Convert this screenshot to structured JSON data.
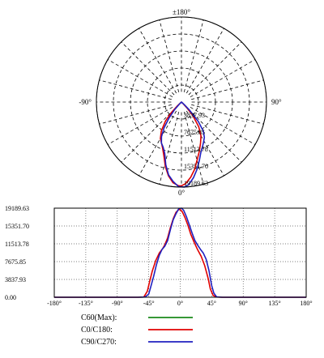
{
  "colors": {
    "c60": "#1a8a1a",
    "c0_c180": "#e00000",
    "c90_c270": "#2020c0",
    "grid": "#000000"
  },
  "polar": {
    "angle_labels": {
      "top": "±180°",
      "left": "-90°",
      "right": "90°",
      "bottom": "0°"
    },
    "ring_labels": [
      "3837.93",
      "7675.85",
      "11513.78",
      "15351.70",
      "19189.63"
    ],
    "ring_label_display": [
      "3837.93",
      "7675.85",
      "11513.78",
      "15351.70",
      "19189.63"
    ]
  },
  "linear": {
    "y_ticks": [
      "19189.63",
      "15351.70",
      "11513.78",
      "7675.85",
      "3837.93",
      "0.00"
    ],
    "x_ticks": [
      "-180°",
      "-135°",
      "-90°",
      "-45°",
      "0°",
      "45°",
      "90°",
      "135°",
      "180°"
    ]
  },
  "legend": [
    {
      "label": "C60(Max):",
      "color_key": "c60"
    },
    {
      "label": "C0/C180:",
      "color_key": "c0_c180"
    },
    {
      "label": "C90/C270:",
      "color_key": "c90_c270"
    }
  ],
  "chart_data": {
    "type": "line",
    "ylim": [
      0,
      19189.63
    ],
    "xlim": [
      -180,
      180
    ],
    "series": [
      {
        "name": "C0/C180:",
        "color_key": "c0_c180",
        "x": [
          -180,
          -90,
          -60,
          -52,
          -47,
          -44,
          -40,
          -35,
          -30,
          -25,
          -22,
          -18,
          -14,
          -10,
          -6,
          -2,
          0,
          3,
          7,
          11,
          15,
          20,
          25,
          30,
          35,
          40,
          43,
          47,
          52,
          60,
          90,
          180
        ],
        "y": [
          0,
          0,
          0,
          60,
          1300,
          3200,
          5600,
          7900,
          9500,
          10500,
          11300,
          12800,
          15000,
          16900,
          18300,
          18900,
          18900,
          18400,
          17100,
          15500,
          13600,
          11800,
          10200,
          8800,
          6800,
          4000,
          1800,
          400,
          60,
          0,
          0,
          0
        ]
      },
      {
        "name": "C90/C270:",
        "color_key": "c90_c270",
        "x": [
          -180,
          -90,
          -60,
          -50,
          -45,
          -42,
          -38,
          -34,
          -30,
          -26,
          -22,
          -18,
          -14,
          -10,
          -6,
          -2,
          2,
          5,
          9,
          13,
          17,
          21,
          25,
          29,
          33,
          37,
          41,
          45,
          48,
          52,
          60,
          90,
          180
        ],
        "y": [
          0,
          0,
          0,
          60,
          700,
          2300,
          4500,
          7000,
          9000,
          10300,
          11000,
          12200,
          14600,
          16700,
          18000,
          19100,
          19189.63,
          18700,
          17300,
          15600,
          13800,
          12200,
          11200,
          10300,
          9500,
          8200,
          5800,
          2500,
          900,
          80,
          0,
          0,
          0
        ]
      }
    ]
  }
}
